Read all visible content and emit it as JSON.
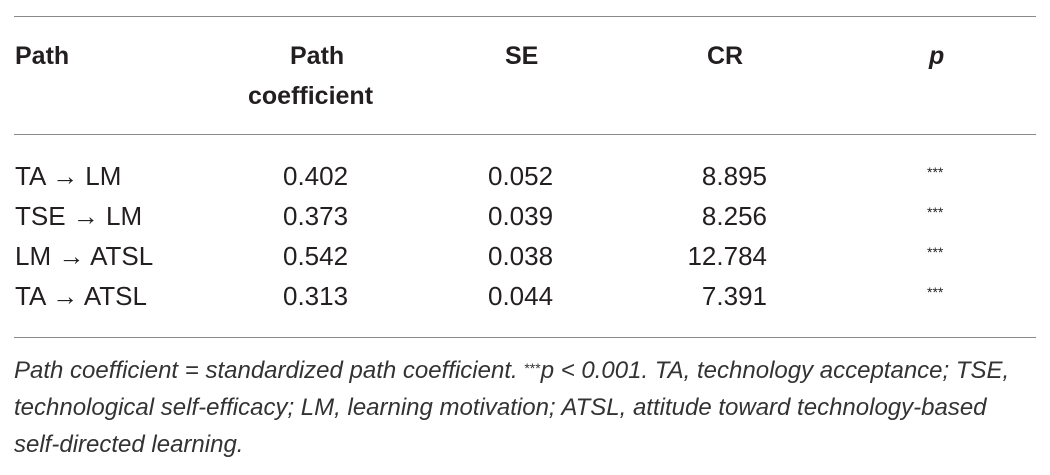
{
  "table": {
    "headers": {
      "path": "Path",
      "coef_line1": "Path",
      "coef_line2": "coefficient",
      "se": "SE",
      "cr": "CR",
      "p": "p"
    },
    "rows": [
      {
        "path": "TA → LM",
        "coef": "0.402",
        "se": "0.052",
        "cr": "8.895",
        "p": "***"
      },
      {
        "path": "TSE → LM",
        "coef": "0.373",
        "se": "0.039",
        "cr": "8.256",
        "p": "***"
      },
      {
        "path": "LM → ATSL",
        "coef": "0.542",
        "se": "0.038",
        "cr": "12.784",
        "p": "***"
      },
      {
        "path": "TA → ATSL",
        "coef": "0.313",
        "se": "0.044",
        "cr": "7.391",
        "p": "***"
      }
    ]
  },
  "footnote": {
    "lead": "Path coefficient = standardized path coefficient.",
    "sup": "***",
    "rest": "p < 0.001. TA, technology acceptance; TSE, technological self-efficacy; LM, learning motivation; ATSL, attitude toward technology-based self-directed learning."
  }
}
